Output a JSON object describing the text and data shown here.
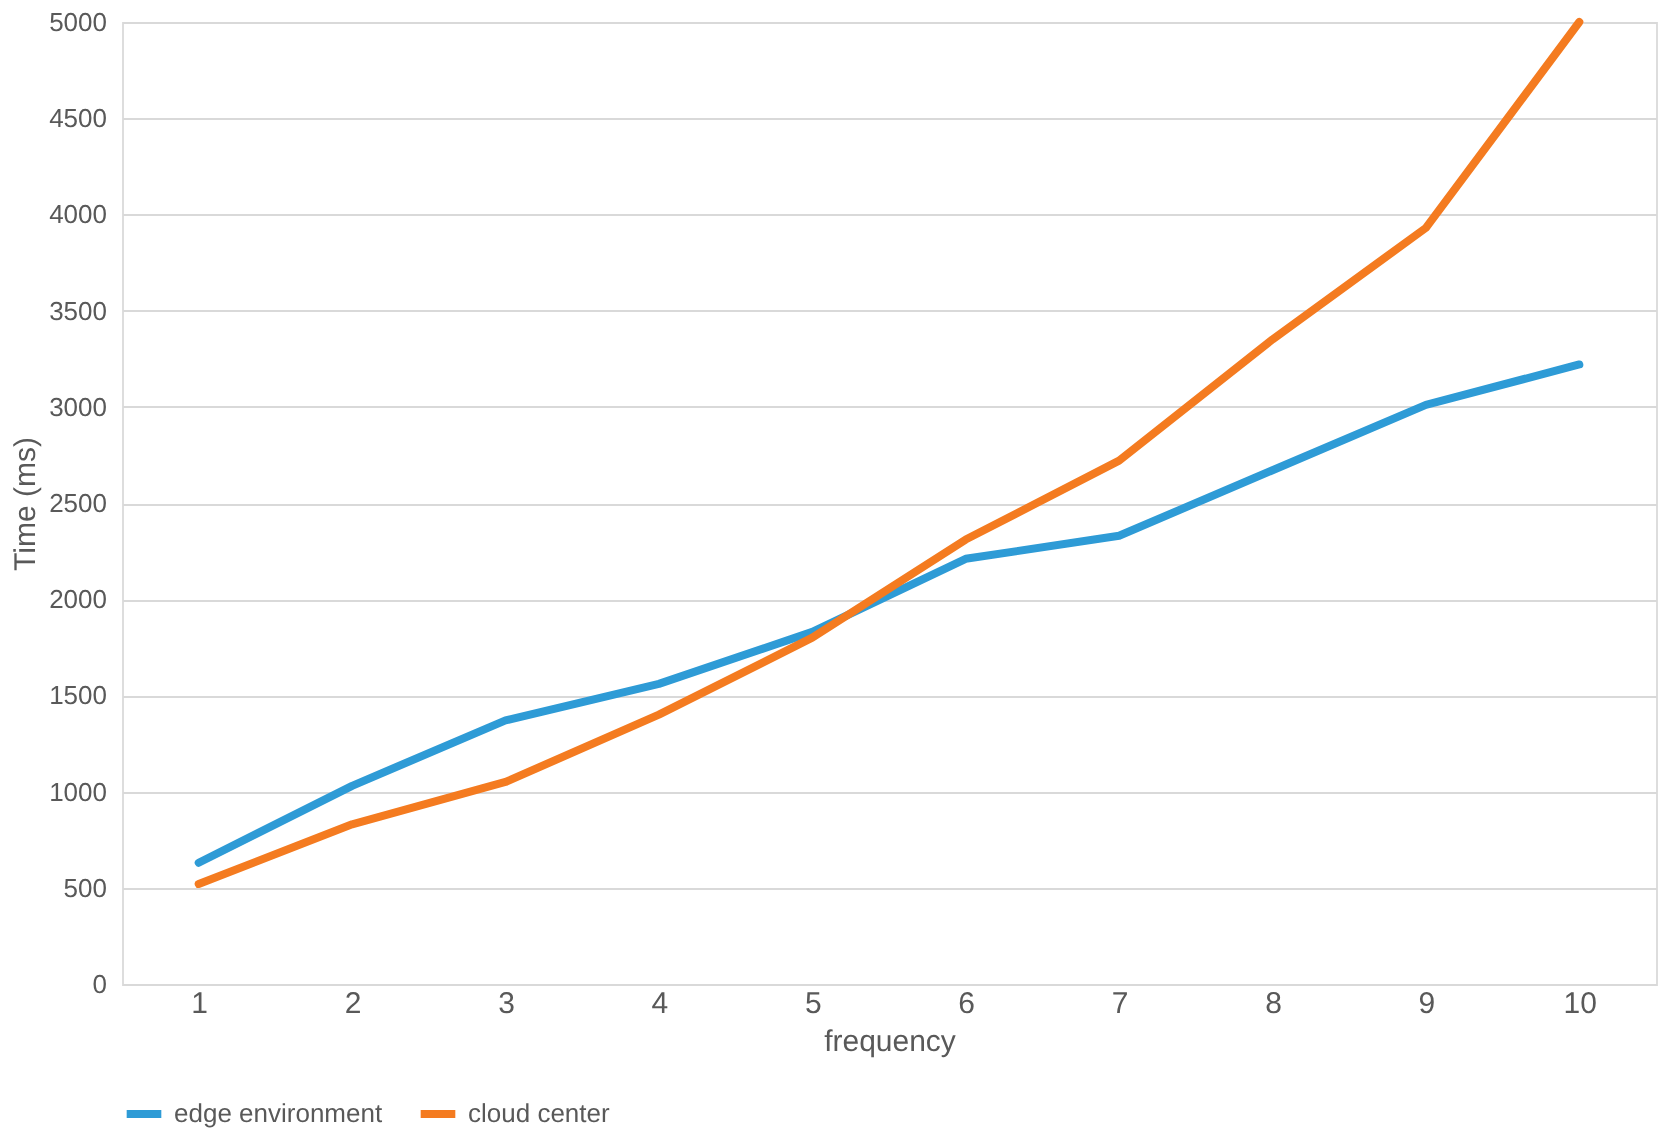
{
  "chart_data": {
    "type": "line",
    "xlabel": "frequency",
    "ylabel": "Time (ms)",
    "categories": [
      "1",
      "2",
      "3",
      "4",
      "5",
      "6",
      "7",
      "8",
      "9",
      "10"
    ],
    "series": [
      {
        "name": "edge environment",
        "color": "#2e9bd6",
        "values": [
          630,
          1030,
          1370,
          1560,
          1830,
          2210,
          2330,
          2670,
          3010,
          3220
        ]
      },
      {
        "name": "cloud center",
        "color": "#f47b20",
        "values": [
          520,
          830,
          1050,
          1400,
          1800,
          2310,
          2720,
          3350,
          3930,
          5000
        ]
      }
    ],
    "ylim": [
      0,
      5000
    ],
    "yticks": [
      0,
      500,
      1000,
      1500,
      2000,
      2500,
      3000,
      3500,
      4000,
      4500,
      5000
    ],
    "grid": "y",
    "legend": "bottom",
    "marker": "none",
    "line_style": "solid"
  }
}
